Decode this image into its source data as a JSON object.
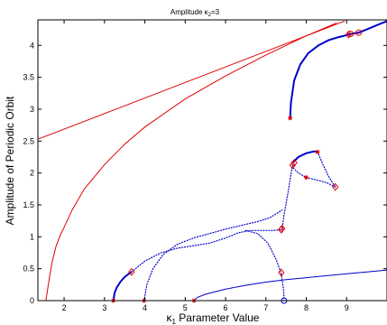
{
  "chart_data": {
    "type": "line",
    "title": "Amplitude κ",
    "title_sub": "2",
    "title_tail": "=3",
    "xlabel": "κ",
    "xlabel_sub": "1",
    "xlabel_tail": " Parameter Value",
    "ylabel": "Amplitude of Periodic Orbit",
    "xlim": [
      1.35,
      10.0
    ],
    "ylim": [
      0,
      4.4
    ],
    "xticks": [
      2,
      3,
      4,
      5,
      6,
      7,
      8,
      9
    ],
    "yticks": [
      0,
      0.5,
      1,
      1.5,
      2,
      2.5,
      3,
      3.5,
      4
    ],
    "grid": false,
    "legend": "none",
    "colors": {
      "red": "#e00000",
      "blue": "#0000cc"
    },
    "series": [
      {
        "color": "red",
        "style": "solid",
        "x": [
          1.35,
          8.95
        ],
        "y": [
          2.53,
          4.38
        ]
      },
      {
        "color": "red",
        "style": "solid",
        "x": [
          1.55,
          1.62,
          1.7,
          1.8,
          1.9,
          2.0,
          2.2,
          2.5,
          3.0,
          3.5,
          4.0,
          5.0,
          6.0,
          7.0,
          8.0,
          8.75
        ],
        "y": [
          0.0,
          0.3,
          0.6,
          0.85,
          1.02,
          1.15,
          1.42,
          1.75,
          2.13,
          2.45,
          2.72,
          3.16,
          3.52,
          3.85,
          4.15,
          4.35
        ]
      },
      {
        "color": "blue",
        "style": "solid",
        "x": [
          3.22,
          3.25,
          3.3,
          3.4,
          3.5,
          3.6,
          3.67
        ],
        "y": [
          0.0,
          0.12,
          0.2,
          0.3,
          0.37,
          0.42,
          0.45
        ]
      },
      {
        "color": "blue",
        "style": "solid",
        "x": [
          5.22,
          5.3,
          5.5,
          6.0,
          6.5,
          7.0,
          7.5,
          8.0,
          8.5,
          9.0,
          9.5,
          10.0
        ],
        "y": [
          0.0,
          0.05,
          0.1,
          0.18,
          0.24,
          0.29,
          0.33,
          0.36,
          0.39,
          0.42,
          0.45,
          0.48
        ]
      },
      {
        "color": "blue",
        "style": "solid",
        "x": [
          7.6,
          7.62,
          7.7,
          7.85,
          8.05,
          8.3,
          8.55,
          8.8,
          9.0,
          9.1
        ],
        "y": [
          2.86,
          3.1,
          3.45,
          3.7,
          3.88,
          4.0,
          4.08,
          4.13,
          4.16,
          4.18
        ]
      },
      {
        "color": "blue",
        "style": "solid",
        "x": [
          9.1,
          9.3,
          9.5,
          9.8,
          10.0
        ],
        "y": [
          4.18,
          4.2,
          4.25,
          4.33,
          4.38
        ]
      },
      {
        "color": "blue",
        "style": "solid",
        "x": [
          7.68,
          7.8,
          8.0,
          8.2,
          8.28
        ],
        "y": [
          2.17,
          2.25,
          2.31,
          2.34,
          2.33
        ]
      },
      {
        "color": "blue",
        "style": "dotted",
        "x": [
          3.67,
          4.0,
          4.4,
          4.8,
          5.2,
          5.6,
          6.0,
          6.3,
          6.6,
          6.9,
          7.15,
          7.38
        ],
        "y": [
          0.45,
          0.62,
          0.75,
          0.82,
          0.86,
          0.9,
          0.98,
          1.06,
          1.1,
          1.1,
          1.1,
          1.11
        ]
      },
      {
        "color": "blue",
        "style": "dotted",
        "x": [
          3.98,
          4.05,
          4.2,
          4.45,
          4.8,
          5.2,
          5.6,
          6.0,
          6.4,
          6.8,
          7.1,
          7.4
        ],
        "y": [
          0.0,
          0.25,
          0.5,
          0.72,
          0.88,
          0.98,
          1.05,
          1.12,
          1.18,
          1.24,
          1.3,
          1.42
        ]
      },
      {
        "color": "blue",
        "style": "dotted",
        "x": [
          6.5,
          6.8,
          7.05,
          7.25,
          7.38,
          7.44,
          7.45
        ],
        "y": [
          1.1,
          1.05,
          0.9,
          0.65,
          0.42,
          0.15,
          0.0
        ]
      },
      {
        "color": "blue",
        "style": "dotted",
        "x": [
          7.4,
          7.45,
          7.55,
          7.62,
          7.66
        ],
        "y": [
          1.11,
          1.35,
          1.7,
          1.98,
          2.12
        ]
      },
      {
        "color": "blue",
        "style": "dotted",
        "x": [
          8.28,
          8.4,
          8.55,
          8.7,
          8.72
        ],
        "y": [
          2.33,
          2.15,
          1.95,
          1.8,
          1.78
        ]
      },
      {
        "color": "blue",
        "style": "dotted",
        "x": [
          8.72,
          8.5,
          8.2,
          8.0,
          7.8,
          7.68,
          7.66
        ],
        "y": [
          1.78,
          1.85,
          1.9,
          1.93,
          2.0,
          2.08,
          2.12
        ]
      }
    ],
    "markers": [
      {
        "shape": "star",
        "color": "red",
        "x": 3.22,
        "y": 0.0
      },
      {
        "shape": "star",
        "color": "red",
        "x": 3.98,
        "y": 0.0
      },
      {
        "shape": "star",
        "color": "red",
        "x": 5.22,
        "y": 0.0
      },
      {
        "shape": "circle",
        "color": "blue",
        "x": 7.45,
        "y": 0.0
      },
      {
        "shape": "diamond",
        "color": "red",
        "x": 3.67,
        "y": 0.45
      },
      {
        "shape": "diamond",
        "color": "red",
        "x": 7.38,
        "y": 0.44
      },
      {
        "shape": "diamond",
        "color": "red",
        "x": 7.38,
        "y": 1.11
      },
      {
        "shape": "diamond",
        "color": "red",
        "x": 7.4,
        "y": 1.13
      },
      {
        "shape": "diamond",
        "color": "red",
        "x": 7.66,
        "y": 2.12
      },
      {
        "shape": "diamond",
        "color": "red",
        "x": 7.7,
        "y": 2.16
      },
      {
        "shape": "diamond",
        "color": "red",
        "x": 8.72,
        "y": 1.78
      },
      {
        "shape": "diamond",
        "color": "red",
        "x": 9.05,
        "y": 4.17
      },
      {
        "shape": "star",
        "color": "red",
        "x": 7.6,
        "y": 2.86
      },
      {
        "shape": "star",
        "color": "red",
        "x": 8.0,
        "y": 1.93
      },
      {
        "shape": "star",
        "color": "red",
        "x": 8.28,
        "y": 2.33
      },
      {
        "shape": "circle",
        "color": "red",
        "x": 9.1,
        "y": 4.18
      },
      {
        "shape": "circle",
        "color": "red",
        "x": 9.3,
        "y": 4.2
      }
    ]
  }
}
